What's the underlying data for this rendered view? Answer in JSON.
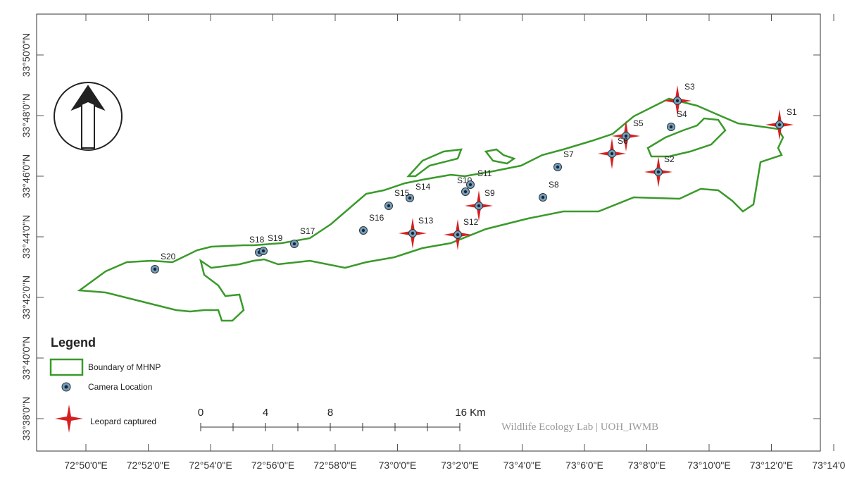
{
  "map": {
    "lon_labels": [
      "72°50'0\"E",
      "72°52'0\"E",
      "72°54'0\"E",
      "72°56'0\"E",
      "72°58'0\"E",
      "73°0'0\"E",
      "73°2'0\"E",
      "73°4'0\"E",
      "73°6'0\"E",
      "73°8'0\"E",
      "73°10'0\"E",
      "73°12'0\"E",
      "73°14'0\"E"
    ],
    "lat_labels": [
      "33°50'0\"N",
      "33°48'0\"N",
      "33°46'0\"N",
      "33°44'0\"N",
      "33°42'0\"N",
      "33°40'0\"N",
      "33°38'0\"N"
    ],
    "stations": [
      {
        "label": "S1",
        "leopard_captured": true
      },
      {
        "label": "S2",
        "leopard_captured": true
      },
      {
        "label": "S3",
        "leopard_captured": true
      },
      {
        "label": "S4",
        "leopard_captured": false
      },
      {
        "label": "S5",
        "leopard_captured": true
      },
      {
        "label": "S6",
        "leopard_captured": true
      },
      {
        "label": "S7",
        "leopard_captured": false
      },
      {
        "label": "S8",
        "leopard_captured": false
      },
      {
        "label": "S9",
        "leopard_captured": true
      },
      {
        "label": "S10",
        "leopard_captured": false
      },
      {
        "label": "S11",
        "leopard_captured": false
      },
      {
        "label": "S12",
        "leopard_captured": true
      },
      {
        "label": "S13",
        "leopard_captured": true
      },
      {
        "label": "S14",
        "leopard_captured": false
      },
      {
        "label": "S15",
        "leopard_captured": false
      },
      {
        "label": "S16",
        "leopard_captured": false
      },
      {
        "label": "S17",
        "leopard_captured": false
      },
      {
        "label": "S18",
        "leopard_captured": false
      },
      {
        "label": "S19",
        "leopard_captured": false
      },
      {
        "label": "S20",
        "leopard_captured": false
      }
    ],
    "legend": {
      "title": "Legend",
      "boundary": "Boundary of MHNP",
      "camera": "Camera Location",
      "leopard": "Leopard captured"
    },
    "scale_bar": {
      "labels": [
        "0",
        "4",
        "8",
        "16 Km"
      ]
    },
    "credit": "Wildlife Ecology Lab | UOH_IWMB"
  }
}
